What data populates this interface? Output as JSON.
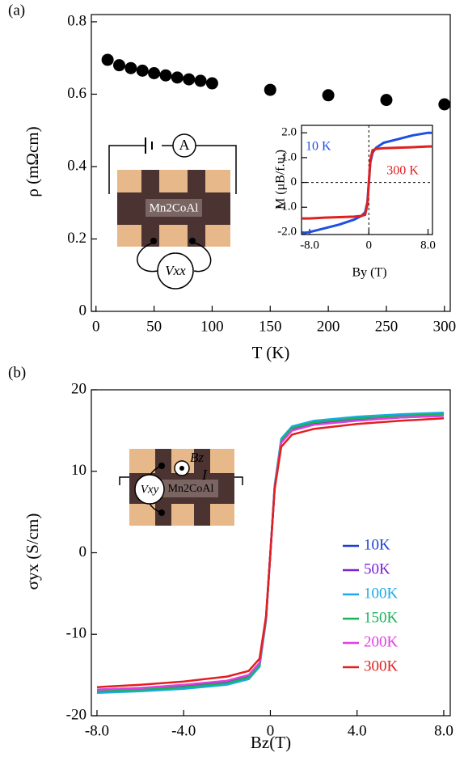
{
  "chart_data": [
    {
      "type": "scatter",
      "title": "(a)",
      "xlabel": "T (K)",
      "ylabel": "ρ (mΩcm)",
      "x": [
        10,
        20,
        30,
        40,
        50,
        60,
        70,
        80,
        90,
        100,
        150,
        200,
        250,
        300
      ],
      "values": [
        0.695,
        0.68,
        0.672,
        0.665,
        0.658,
        0.652,
        0.646,
        0.641,
        0.637,
        0.63,
        0.612,
        0.597,
        0.584,
        0.572
      ],
      "color": "#000000",
      "xlim": [
        -4,
        305
      ],
      "xticks": [
        0,
        50,
        100,
        150,
        200,
        250,
        300
      ],
      "ylim": [
        0,
        0.82
      ],
      "yticks": [
        0,
        0.2,
        0.4,
        0.6,
        0.8
      ],
      "annotations": [
        "A",
        "Mn2CoAl",
        "Vxx"
      ]
    },
    {
      "type": "line",
      "xlabel": "By (T)",
      "ylabel": "M (μB/f.u.)",
      "x": [
        -9,
        -8,
        -6,
        -4,
        -2,
        -1,
        -0.5,
        -0.2,
        0,
        0.2,
        0.5,
        1,
        2,
        4,
        6,
        8,
        8.5
      ],
      "series": [
        {
          "name": "10 K",
          "color": "#1f4fe0",
          "values": [
            -2.05,
            -2.0,
            -1.85,
            -1.7,
            -1.5,
            -1.35,
            -1.2,
            -0.8,
            0,
            0.8,
            1.2,
            1.4,
            1.6,
            1.75,
            1.9,
            2.0,
            2.0
          ]
        },
        {
          "name": "300 K",
          "color": "#e02020",
          "values": [
            -1.45,
            -1.45,
            -1.42,
            -1.4,
            -1.38,
            -1.35,
            -1.3,
            -0.9,
            0,
            0.9,
            1.3,
            1.35,
            1.38,
            1.4,
            1.42,
            1.45,
            1.45
          ]
        }
      ],
      "xlim": [
        -9.1,
        8.6
      ],
      "xticks": [
        {
          "value": -8,
          "label": "-8.0"
        },
        0,
        {
          "value": 8,
          "label": "8.0"
        }
      ],
      "ylim": [
        -2.1,
        2.3
      ],
      "yticks": [
        {
          "value": -2,
          "label": "-2.0"
        },
        {
          "value": -1,
          "label": "-1.0"
        },
        0,
        {
          "value": 1,
          "label": "1.0"
        },
        {
          "value": 2,
          "label": "2.0"
        }
      ],
      "zero_lines": true
    },
    {
      "type": "line",
      "title": "(b)",
      "xlabel": "Bz(T)",
      "ylabel": "σyx (S/cm)",
      "x": [
        -8,
        -6,
        -4,
        -2,
        -1,
        -0.5,
        -0.2,
        0,
        0.2,
        0.5,
        1,
        2,
        4,
        6,
        8
      ],
      "series": [
        {
          "name": "10K",
          "color": "#1a3fd1",
          "values": [
            -16.8,
            -16.6,
            -16.3,
            -15.8,
            -15.1,
            -13.6,
            -8,
            0,
            8,
            13.6,
            15.1,
            15.8,
            16.3,
            16.6,
            16.8
          ]
        },
        {
          "name": "50K",
          "color": "#7a1fd6",
          "values": [
            -16.9,
            -16.7,
            -16.4,
            -15.9,
            -15.2,
            -13.7,
            -8.1,
            0,
            8.1,
            13.7,
            15.2,
            15.9,
            16.4,
            16.7,
            16.9
          ]
        },
        {
          "name": "100K",
          "color": "#1aaae8",
          "values": [
            -17.2,
            -17.0,
            -16.7,
            -16.2,
            -15.5,
            -14.0,
            -8.3,
            0,
            8.3,
            14.0,
            15.5,
            16.2,
            16.7,
            17.0,
            17.2
          ]
        },
        {
          "name": "150K",
          "color": "#1bb35a",
          "values": [
            -17.0,
            -16.8,
            -16.5,
            -16.0,
            -15.3,
            -13.8,
            -8.2,
            0,
            8.2,
            13.8,
            15.3,
            16.0,
            16.5,
            16.8,
            17.0
          ]
        },
        {
          "name": "200K",
          "color": "#e040e0",
          "values": [
            -16.8,
            -16.6,
            -16.2,
            -15.7,
            -15.0,
            -13.5,
            -8,
            0,
            8,
            13.5,
            15.0,
            15.7,
            16.2,
            16.6,
            16.8
          ]
        },
        {
          "name": "300K",
          "color": "#e02020",
          "values": [
            -16.5,
            -16.2,
            -15.8,
            -15.2,
            -14.5,
            -13.0,
            -7.8,
            0,
            7.8,
            13.0,
            14.5,
            15.2,
            15.8,
            16.2,
            16.5
          ]
        }
      ],
      "xlim": [
        -8.26,
        8.3
      ],
      "xticks": [
        {
          "value": -8,
          "label": "-8.0"
        },
        {
          "value": -4,
          "label": "-4.0"
        },
        0,
        {
          "value": 4,
          "label": "4.0"
        },
        {
          "value": 8,
          "label": "8.0"
        }
      ],
      "ylim": [
        -20,
        20
      ],
      "yticks": [
        -20,
        -10,
        0,
        10,
        20
      ],
      "legend": "lower right",
      "annotations": [
        "I",
        "Bz",
        "Vxy",
        "Mn2CoAl"
      ]
    }
  ]
}
